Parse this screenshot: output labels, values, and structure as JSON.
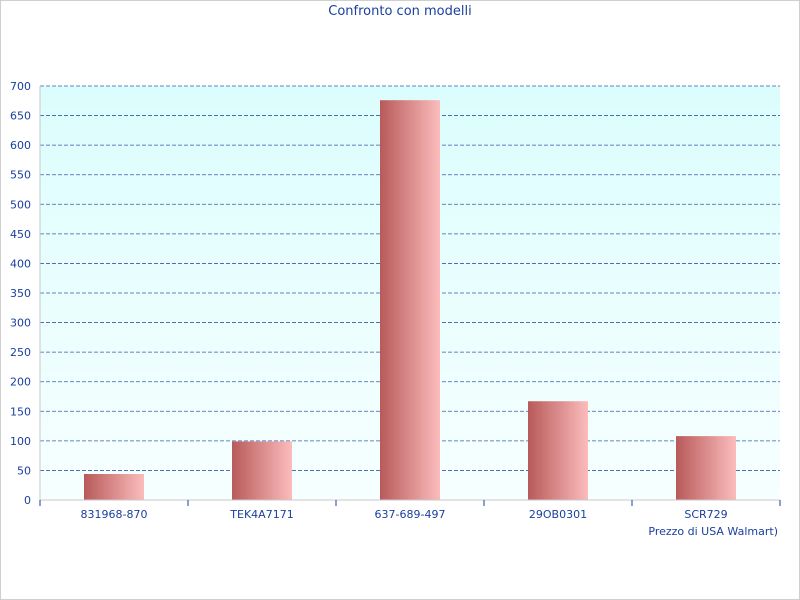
{
  "chart_data": {
    "type": "bar",
    "title": "Confronto con modelli",
    "xlabel": "Prezzo di USA Walmart)",
    "ylabel": "",
    "categories": [
      "831968-870",
      "TEK4A7171",
      "637-689-497",
      "29OB0301",
      "SCR729"
    ],
    "values": [
      44,
      99,
      676,
      167,
      108
    ],
    "ylim": [
      0,
      700
    ],
    "yticks": [
      0,
      50,
      100,
      150,
      200,
      250,
      300,
      350,
      400,
      450,
      500,
      550,
      600,
      650,
      700
    ],
    "grid": true,
    "colors": {
      "plot_background_top": "#dcfdfd",
      "plot_background_bottom": "#f7ffff",
      "bar_dark": "#b85a5a",
      "bar_light": "#fcbcbc",
      "grid_line": "#1a3f9e",
      "text": "#1a3f9e"
    }
  }
}
